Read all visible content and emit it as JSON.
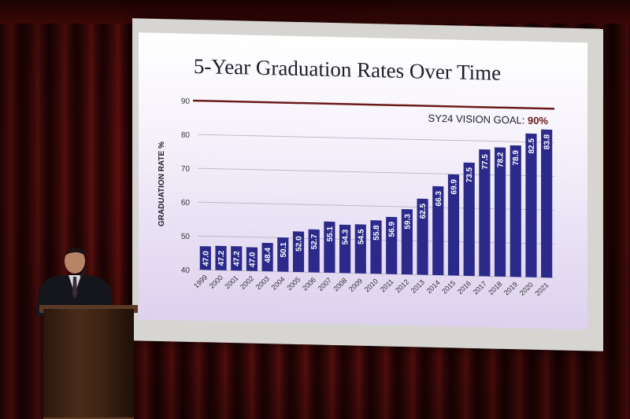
{
  "slide": {
    "title": "5-Year Graduation Rates Over Time",
    "goal_label": "SY24 VISION GOAL: ",
    "goal_value": "90%"
  },
  "chart_data": {
    "type": "bar",
    "title": "5-Year Graduation Rates Over Time",
    "ylabel": "GRADUATION RATE %",
    "xlabel": "",
    "ylim": [
      40,
      90
    ],
    "yticks": [
      40,
      50,
      60,
      70,
      80,
      90
    ],
    "categories": [
      "1999",
      "2000",
      "2001",
      "2002",
      "2003",
      "2004",
      "2005",
      "2006",
      "2007",
      "2008",
      "2009",
      "2010",
      "2011",
      "2012",
      "2013",
      "2014",
      "2015",
      "2016",
      "2017",
      "2018",
      "2019",
      "2020",
      "2021"
    ],
    "values": [
      47.0,
      47.2,
      47.2,
      47.0,
      48.4,
      50.1,
      52.0,
      52.7,
      55.1,
      54.3,
      54.5,
      55.8,
      56.9,
      59.3,
      62.5,
      66.3,
      69.9,
      73.5,
      77.5,
      78.2,
      78.9,
      82.5,
      83.8
    ],
    "value_labels": [
      "47.0",
      "47.2",
      "47.2",
      "47.0",
      "48.4",
      "50.1",
      "52.0",
      "52.7",
      "55.1",
      "54.3",
      "54.5",
      "55.8",
      "56.9",
      "59.3",
      "62.5",
      "66.3",
      "69.9",
      "73.5",
      "77.5",
      "78.2",
      "78.9",
      "82.5",
      "83.8"
    ],
    "goal_line": 90,
    "bar_color": "#2b2a8a",
    "goal_color": "#6b1a1a",
    "grid": true
  }
}
